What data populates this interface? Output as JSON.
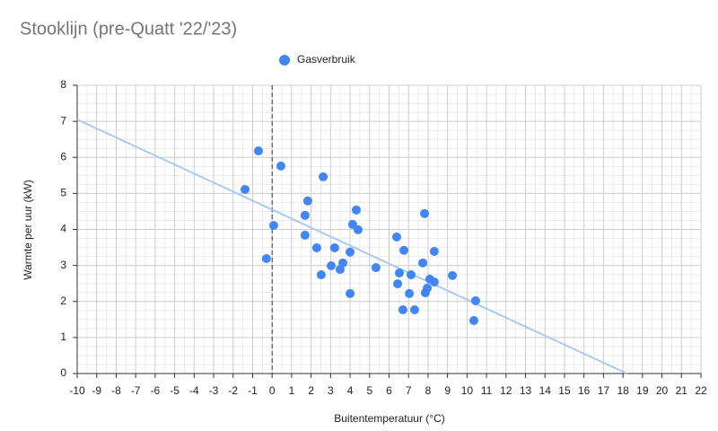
{
  "chart_data": {
    "type": "scatter",
    "title": "Stooklijn (pre-Quatt '22/'23)",
    "x_label": "Buitentemperatuur (°C)",
    "y_label": "Warmte per uur (kW)",
    "xlim": [
      -10,
      22
    ],
    "xticks": [
      -10,
      -9,
      -8,
      -7,
      -6,
      -5,
      -4,
      -3,
      -2,
      -1,
      0,
      1,
      2,
      3,
      4,
      5,
      6,
      7,
      8,
      9,
      10,
      11,
      12,
      13,
      14,
      15,
      16,
      17,
      18,
      19,
      20,
      21,
      22
    ],
    "ylim": [
      0,
      8
    ],
    "yticks": [
      0,
      1,
      2,
      3,
      4,
      5,
      6,
      7,
      8
    ],
    "grid": true,
    "minor_grid": true,
    "legend": "top",
    "series": [
      {
        "name": "Gasverbruik",
        "color": "#4285f4",
        "x": [
          -0.7,
          -1.39,
          0.45,
          2.62,
          0.08,
          -0.29,
          1.83,
          1.69,
          1.69,
          2.29,
          2.52,
          3.03,
          3.21,
          3.63,
          3.49,
          4.0,
          4.0,
          4.13,
          4.32,
          4.41,
          5.33,
          6.39,
          6.44,
          6.53,
          6.76,
          6.71,
          7.04,
          7.13,
          7.31,
          7.73,
          7.82,
          7.86,
          7.96,
          8.09,
          8.32,
          8.32,
          9.25,
          10.44,
          10.35
        ],
        "values": [
          6.18,
          5.11,
          5.76,
          5.46,
          4.11,
          3.19,
          4.79,
          4.39,
          3.84,
          3.49,
          2.74,
          2.99,
          3.49,
          3.07,
          2.89,
          3.37,
          2.22,
          4.14,
          4.54,
          3.99,
          2.94,
          3.79,
          2.49,
          2.79,
          3.42,
          1.77,
          2.22,
          2.74,
          1.77,
          3.07,
          4.44,
          2.24,
          2.37,
          2.62,
          2.54,
          3.39,
          2.72,
          2.02,
          1.47
        ]
      }
    ],
    "trendline": {
      "color": "#a9c9f5",
      "x": [
        -10,
        18.2
      ],
      "values": [
        7.05,
        0
      ]
    }
  }
}
